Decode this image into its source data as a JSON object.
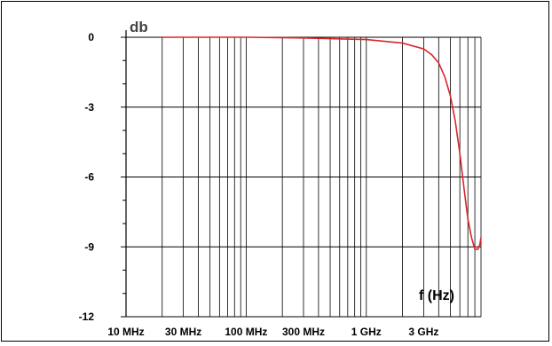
{
  "chart_data": {
    "type": "line",
    "ylabel": "db",
    "xlabel": "f (Hz)",
    "x_scale": "log",
    "xlim": [
      10000000,
      9000000000
    ],
    "ylim": [
      -12,
      0
    ],
    "grid": true,
    "yticks": [
      0,
      -3,
      -6,
      -9,
      -12
    ],
    "ytick_labels": [
      "0",
      "-3",
      "-6",
      "-9",
      "-12"
    ],
    "xticks": [
      10000000,
      30000000,
      100000000,
      300000000,
      1000000000,
      3000000000
    ],
    "xtick_labels": [
      "10 MHz",
      "30 MHz",
      "100 MHz",
      "300 MHz",
      "1 GHz",
      "3 GHz"
    ],
    "line_color": "#d9252b",
    "series": [
      {
        "x": [
          20000000,
          100000000,
          300000000,
          1000000000,
          2000000000,
          3000000000,
          3500000000,
          4000000000,
          4500000000,
          5000000000,
          5500000000,
          6000000000,
          6500000000,
          7000000000,
          7500000000,
          8000000000,
          8500000000,
          8800000000,
          9000000000
        ],
        "y": [
          0.0,
          0.0,
          -0.03,
          -0.1,
          -0.25,
          -0.5,
          -0.75,
          -1.1,
          -1.7,
          -2.5,
          -3.6,
          -5.0,
          -6.5,
          -7.8,
          -8.6,
          -9.1,
          -9.1,
          -8.9,
          -8.6
        ]
      }
    ]
  }
}
